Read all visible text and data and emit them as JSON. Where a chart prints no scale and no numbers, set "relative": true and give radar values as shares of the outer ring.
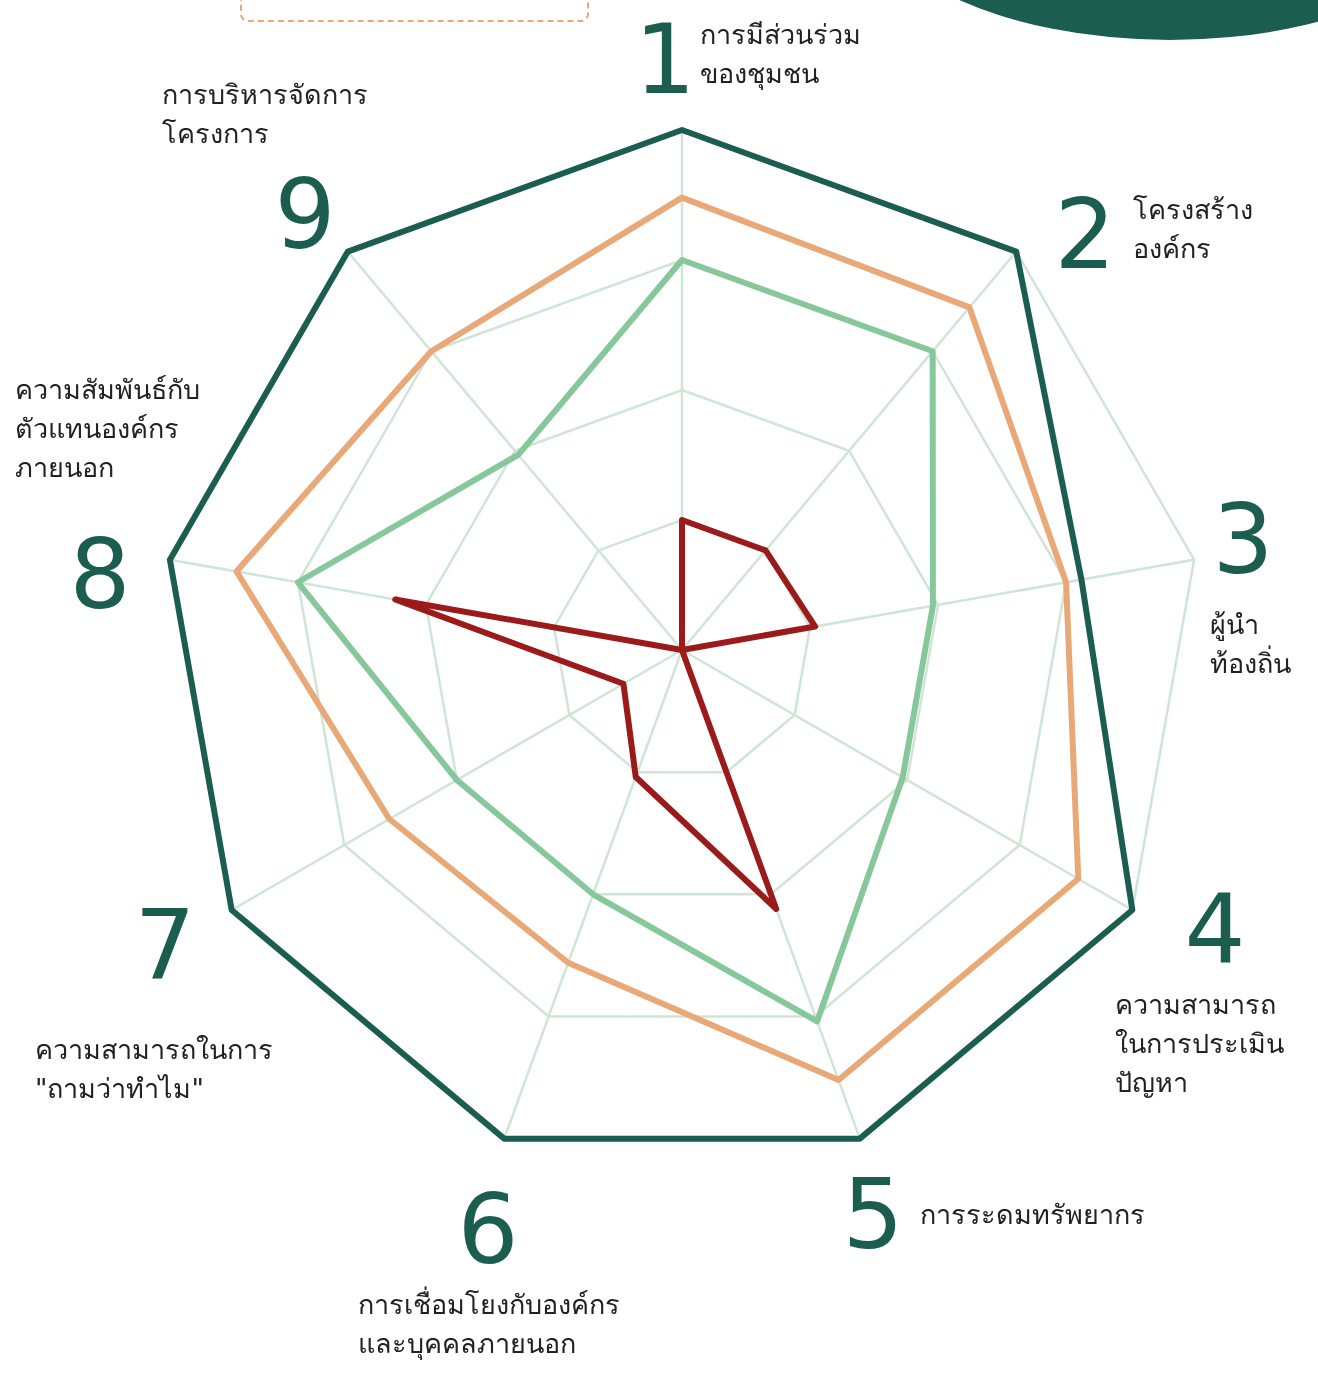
{
  "chart_data": {
    "type": "radar",
    "relative": true,
    "grid": true,
    "legend": false,
    "marker": "none",
    "categories": [
      "การมีส่วนร่วม\nของชุมชน",
      "โครงสร้าง\nองค์กร",
      "ผู้นำ\nท้องถิ่น",
      "ความสามารถ\nในการประเมิน\nปัญหา",
      "การระดมทรัพยากร",
      "การเชื่อมโยงกับองค์กร\nและบุคคลภายนอก",
      "ความสามารถในการ\n\"ถามว่าทำไม\"",
      "ความสัมพันธ์กับ\nตัวแทนองค์กร\nภายนอก",
      "การบริหารจัดการ\nโครงการ"
    ],
    "annotations": [
      "1",
      "2",
      "3",
      "4",
      "5",
      "6",
      "7",
      "8",
      "9"
    ],
    "series": [
      {
        "color": "#1b5e50",
        "values": [
          1,
          1,
          0.78,
          1,
          1,
          1,
          1,
          1,
          1
        ]
      },
      {
        "color": "#e9a877",
        "values": [
          0.87,
          0.86,
          0.75,
          0.88,
          0.88,
          0.64,
          0.65,
          0.87,
          0.75
        ]
      },
      {
        "color": "#86c89b",
        "values": [
          0.75,
          0.75,
          0.49,
          0.49,
          0.76,
          0.5,
          0.5,
          0.75,
          0.49
        ]
      },
      {
        "color": "#9b1b1b",
        "values": [
          0.25,
          0.25,
          0.26,
          0,
          0.53,
          0.26,
          0.13,
          0.56,
          0
        ]
      }
    ]
  }
}
